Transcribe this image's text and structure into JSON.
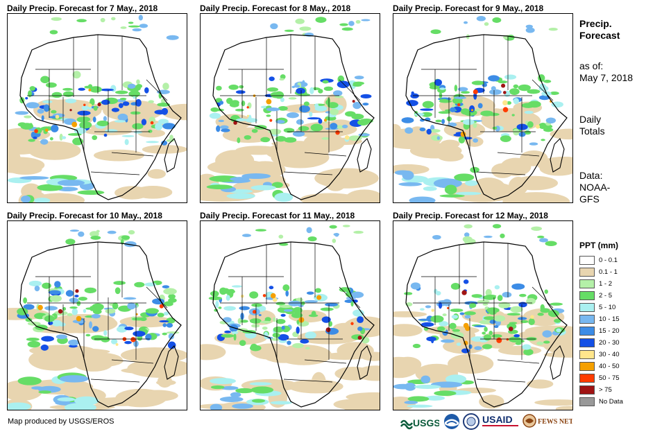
{
  "panels": [
    {
      "title": "Daily Precip. Forecast for 7 May., 2018"
    },
    {
      "title": "Daily Precip. Forecast for 8 May., 2018"
    },
    {
      "title": "Daily Precip. Forecast for 9 May., 2018"
    },
    {
      "title": "Daily Precip. Forecast for 10 May., 2018"
    },
    {
      "title": "Daily Precip. Forecast for 11 May., 2018"
    },
    {
      "title": "Daily Precip. Forecast for 12 May., 2018"
    }
  ],
  "sidebar": {
    "heading_line1": "Precip.",
    "heading_line2": "Forecast",
    "asof_label": "as of:",
    "asof_date": "May 7, 2018",
    "totals_line1": "Daily",
    "totals_line2": "Totals",
    "data_line1": "Data:",
    "data_line2": "NOAA-",
    "data_line3": "GFS"
  },
  "legend": {
    "title": "PPT (mm)",
    "items": [
      {
        "label": "0 - 0.1",
        "color": "#ffffff"
      },
      {
        "label": "0.1 - 1",
        "color": "#e8d5b0"
      },
      {
        "label": "1 - 2",
        "color": "#b4f0a8"
      },
      {
        "label": "2 - 5",
        "color": "#66dd66"
      },
      {
        "label": "5 - 10",
        "color": "#aaf0f0"
      },
      {
        "label": "10 - 15",
        "color": "#78b8f0"
      },
      {
        "label": "15 - 20",
        "color": "#3c8ce6"
      },
      {
        "label": "20 - 30",
        "color": "#1450e6"
      },
      {
        "label": "30 - 40",
        "color": "#ffe68c"
      },
      {
        "label": "40 - 50",
        "color": "#f5a000"
      },
      {
        "label": "50 - 75",
        "color": "#ff3c00"
      },
      {
        "label": "> 75",
        "color": "#a01414"
      },
      {
        "label": "No Data",
        "color": "#999999"
      }
    ]
  },
  "footer": {
    "credit": "Map produced by USGS/EROS"
  },
  "logos": {
    "usgs": "USGS",
    "usaid": "USAID",
    "fews": "FEWS NET"
  }
}
